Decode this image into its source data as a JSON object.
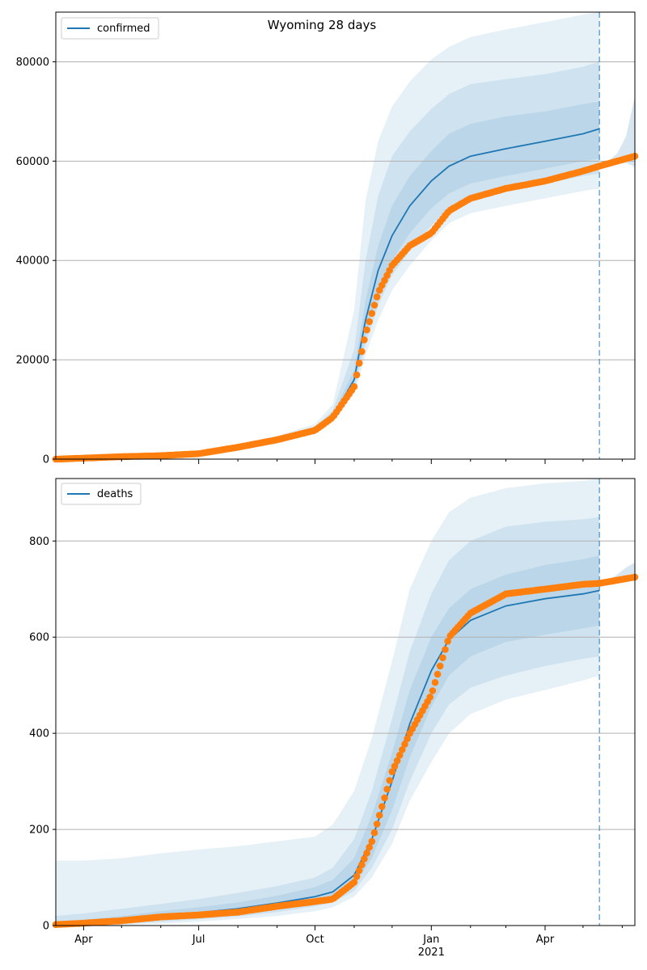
{
  "title": "Wyoming 28 days",
  "x_axis": {
    "month_ticks": [
      "Apr",
      "Jul",
      "Oct",
      "Jan",
      "Apr"
    ],
    "year_label": "2021"
  },
  "colors": {
    "model": "#1f77b4",
    "observed": "#ff7f0e",
    "band": "#1f77b4",
    "grid": "#b0b0b0"
  },
  "chart_data": [
    {
      "type": "line",
      "legend": "confirmed",
      "legend_position": "top-left",
      "grid": "y",
      "x_range": [
        "2020-03-10",
        "2021-06-11"
      ],
      "forecast_start": "2021-05-14",
      "ylim": [
        0,
        90000
      ],
      "yticks": [
        0,
        20000,
        40000,
        60000,
        80000
      ],
      "ytick_labels": [
        "0",
        "20000",
        "40000",
        "60000",
        "80000"
      ],
      "dates": [
        "2020-03-10",
        "2020-04-01",
        "2020-05-01",
        "2020-06-01",
        "2020-07-01",
        "2020-08-01",
        "2020-09-01",
        "2020-10-01",
        "2020-10-15",
        "2020-11-01",
        "2020-11-10",
        "2020-11-20",
        "2020-12-01",
        "2020-12-15",
        "2021-01-01",
        "2021-01-15",
        "2021-02-01",
        "2021-03-01",
        "2021-04-01",
        "2021-05-01",
        "2021-05-14"
      ],
      "model": [
        0,
        100,
        300,
        600,
        1000,
        2300,
        3800,
        6000,
        8500,
        16000,
        28000,
        38000,
        45000,
        51000,
        56000,
        59000,
        61000,
        62500,
        64000,
        65500,
        66500
      ],
      "band_inner_low": [
        0,
        80,
        250,
        520,
        900,
        2150,
        3600,
        5800,
        8200,
        15000,
        25000,
        34000,
        40000,
        45500,
        50500,
        53500,
        55500,
        57000,
        58500,
        60000,
        60500
      ],
      "band_inner_high": [
        0,
        130,
        350,
        700,
        1150,
        2500,
        4000,
        6200,
        9000,
        18000,
        32000,
        43000,
        51000,
        57000,
        62000,
        65500,
        67500,
        69000,
        70000,
        71500,
        72000
      ],
      "band_mid_low": [
        0,
        60,
        200,
        450,
        800,
        2000,
        3400,
        5600,
        7900,
        14000,
        23000,
        31000,
        37000,
        42000,
        47000,
        50500,
        52500,
        54000,
        55500,
        57000,
        57500
      ],
      "band_mid_high": [
        0,
        170,
        420,
        800,
        1300,
        2700,
        4300,
        6600,
        9800,
        22000,
        40000,
        53000,
        61000,
        66000,
        70500,
        73500,
        75500,
        76500,
        77500,
        79000,
        80000
      ],
      "band_outer_low": [
        0,
        40,
        150,
        380,
        700,
        1800,
        3100,
        5300,
        7600,
        13000,
        21000,
        28000,
        34000,
        39000,
        44000,
        47500,
        49500,
        51000,
        52500,
        54000,
        54500
      ],
      "band_outer_high": [
        0,
        230,
        500,
        950,
        1500,
        3000,
        4700,
        7100,
        11000,
        30000,
        52000,
        64000,
        71000,
        76000,
        80500,
        83000,
        85000,
        86500,
        88000,
        89500,
        90000
      ],
      "observed_dates": [
        "2020-03-10",
        "2020-04-01",
        "2020-05-01",
        "2020-06-01",
        "2020-07-01",
        "2020-08-01",
        "2020-09-01",
        "2020-10-01",
        "2020-10-15",
        "2020-11-01",
        "2020-11-10",
        "2020-11-20",
        "2020-12-01",
        "2020-12-15",
        "2021-01-01",
        "2021-01-15",
        "2021-02-01",
        "2021-03-01",
        "2021-04-01",
        "2021-05-01",
        "2021-05-14",
        "2021-06-11"
      ],
      "observed": [
        0,
        200,
        500,
        700,
        1100,
        2400,
        3900,
        5800,
        8400,
        14600,
        25200,
        33500,
        39000,
        43000,
        45500,
        50000,
        52500,
        54500,
        56000,
        58000,
        59000,
        61000
      ],
      "post_forecast_band_high": [
        59000,
        60000,
        61500,
        65000,
        73000
      ],
      "post_forecast_dates": [
        "2021-05-14",
        "2021-05-21",
        "2021-05-28",
        "2021-06-04",
        "2021-06-11"
      ]
    },
    {
      "type": "line",
      "legend": "deaths",
      "legend_position": "top-left",
      "grid": "y",
      "x_range": [
        "2020-03-10",
        "2021-06-11"
      ],
      "forecast_start": "2021-05-14",
      "ylim": [
        0,
        930
      ],
      "yticks": [
        0,
        200,
        400,
        600,
        800
      ],
      "ytick_labels": [
        "0",
        "200",
        "400",
        "600",
        "800"
      ],
      "dates": [
        "2020-03-10",
        "2020-04-01",
        "2020-05-01",
        "2020-06-01",
        "2020-07-01",
        "2020-08-01",
        "2020-09-01",
        "2020-10-01",
        "2020-10-15",
        "2020-11-01",
        "2020-11-15",
        "2020-12-01",
        "2020-12-15",
        "2021-01-01",
        "2021-01-15",
        "2021-02-01",
        "2021-03-01",
        "2021-04-01",
        "2021-05-01",
        "2021-05-14"
      ],
      "model": [
        2,
        5,
        12,
        20,
        27,
        35,
        47,
        60,
        70,
        105,
        180,
        300,
        420,
        530,
        595,
        635,
        665,
        680,
        690,
        697
      ],
      "band_inner_low": [
        0,
        2,
        6,
        12,
        18,
        25,
        35,
        48,
        58,
        85,
        140,
        240,
        350,
        455,
        520,
        560,
        590,
        605,
        618,
        625
      ],
      "band_inner_high": [
        8,
        12,
        20,
        30,
        38,
        48,
        62,
        80,
        95,
        140,
        230,
        360,
        490,
        600,
        660,
        700,
        730,
        750,
        762,
        770
      ],
      "band_mid_low": [
        0,
        1,
        3,
        8,
        13,
        19,
        28,
        40,
        48,
        72,
        120,
        200,
        300,
        400,
        460,
        495,
        520,
        540,
        555,
        560
      ],
      "band_mid_high": [
        20,
        25,
        35,
        45,
        55,
        68,
        82,
        100,
        120,
        180,
        280,
        430,
        570,
        690,
        760,
        800,
        830,
        840,
        845,
        850
      ],
      "band_outer_low": [
        0,
        0,
        1,
        4,
        8,
        14,
        20,
        30,
        38,
        60,
        100,
        170,
        260,
        340,
        400,
        440,
        470,
        490,
        510,
        520
      ],
      "band_outer_high": [
        135,
        135,
        140,
        150,
        158,
        165,
        175,
        185,
        210,
        280,
        390,
        550,
        700,
        800,
        860,
        890,
        910,
        920,
        925,
        930
      ],
      "observed_dates": [
        "2020-03-10",
        "2020-04-01",
        "2020-05-01",
        "2020-06-01",
        "2020-07-01",
        "2020-08-01",
        "2020-09-01",
        "2020-10-01",
        "2020-10-15",
        "2020-11-01",
        "2020-11-15",
        "2020-12-01",
        "2020-12-15",
        "2021-01-01",
        "2021-01-15",
        "2021-02-01",
        "2021-03-01",
        "2021-04-01",
        "2021-05-01",
        "2021-05-14",
        "2021-06-11"
      ],
      "observed": [
        2,
        5,
        10,
        18,
        22,
        28,
        40,
        50,
        55,
        90,
        175,
        320,
        400,
        480,
        600,
        650,
        690,
        700,
        710,
        712,
        725
      ],
      "post_forecast_band_high": [
        712,
        718,
        730,
        745,
        755
      ],
      "post_forecast_dates": [
        "2021-05-14",
        "2021-05-21",
        "2021-05-28",
        "2021-06-04",
        "2021-06-11"
      ]
    }
  ]
}
